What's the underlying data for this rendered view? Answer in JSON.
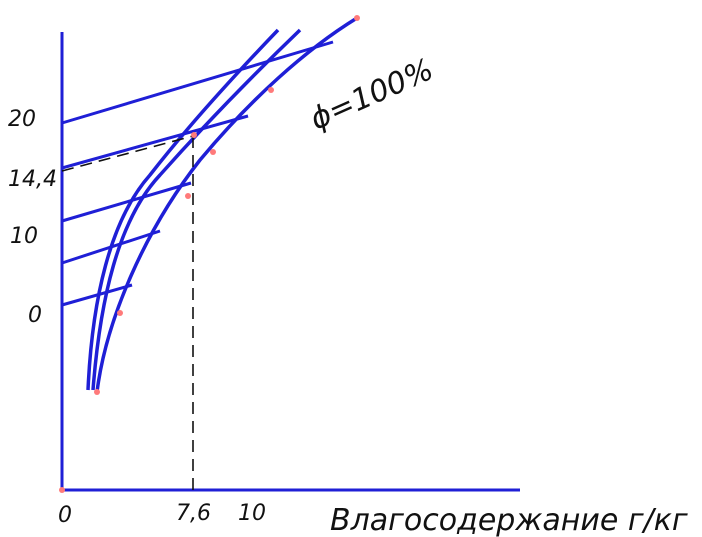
{
  "colors": {
    "curve": "#1f1fd6",
    "dash": "#111111",
    "marker": "#ff7a7a",
    "text": "#111111"
  },
  "labels": {
    "y_ticks": [
      "20",
      "14,4",
      "10",
      "0"
    ],
    "x_ticks": [
      "0",
      "7,6",
      "10"
    ],
    "x_axis_title": "Влагосодержание г/кг",
    "phi_label": "ϕ=100%"
  }
}
